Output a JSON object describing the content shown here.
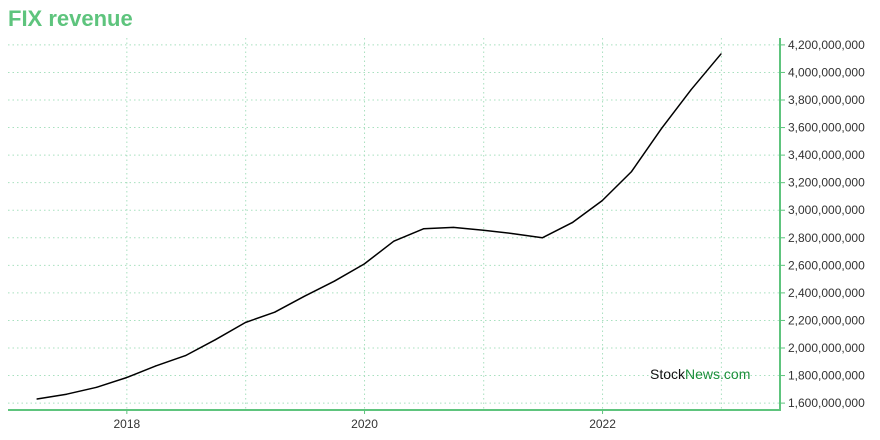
{
  "colors": {
    "accent": "#5ec47d",
    "grid": "#a8e0bf",
    "line": "#000000",
    "watermark_black": "#111111",
    "watermark_green": "#1a8f3a"
  },
  "watermark": {
    "part1": "Stock",
    "part2": "News",
    "part3": ".com"
  },
  "chart_data": {
    "type": "line",
    "title": "FIX revenue",
    "xlabel": "",
    "ylabel": "",
    "y_axis_side": "right",
    "grid": true,
    "legend": "none",
    "xlim": [
      "2017-01-01",
      "2023-06-30"
    ],
    "ylim": [
      1550000000,
      4250000000
    ],
    "x_ticks": [
      "2018-01-01",
      "2020-01-01",
      "2022-01-01"
    ],
    "x_tick_labels": [
      "2018",
      "2020",
      "2022"
    ],
    "x_minor_ticks": [
      "2017-01-01",
      "2019-01-01",
      "2021-01-01",
      "2023-01-01"
    ],
    "y_ticks": [
      1600000000,
      1800000000,
      2000000000,
      2200000000,
      2400000000,
      2600000000,
      2800000000,
      3000000000,
      3200000000,
      3400000000,
      3600000000,
      3800000000,
      4000000000,
      4200000000
    ],
    "y_tick_labels": [
      "1,600,000,000",
      "1,800,000,000",
      "2,000,000,000",
      "2,200,000,000",
      "2,400,000,000",
      "2,600,000,000",
      "2,800,000,000",
      "3,000,000,000",
      "3,200,000,000",
      "3,400,000,000",
      "3,600,000,000",
      "3,800,000,000",
      "4,000,000,000",
      "4,200,000,000"
    ],
    "series": [
      {
        "x": [
          "2017-03-31",
          "2017-06-30",
          "2017-09-30",
          "2017-12-31",
          "2018-03-31",
          "2018-06-30",
          "2018-09-30",
          "2018-12-31",
          "2019-03-31",
          "2019-06-30",
          "2019-09-30",
          "2019-12-31",
          "2020-03-31",
          "2020-06-30",
          "2020-09-30",
          "2020-12-31",
          "2021-03-31",
          "2021-06-30",
          "2021-09-30",
          "2021-12-31",
          "2022-03-31",
          "2022-06-30",
          "2022-09-30",
          "2022-12-31"
        ],
        "values": [
          1630000000,
          1665000000,
          1715000000,
          1785000000,
          1870000000,
          1945000000,
          2060000000,
          2185000000,
          2260000000,
          2375000000,
          2485000000,
          2610000000,
          2775000000,
          2865000000,
          2875000000,
          2855000000,
          2830000000,
          2800000000,
          2910000000,
          3070000000,
          3280000000,
          3590000000,
          3875000000,
          4135000000
        ]
      }
    ]
  }
}
